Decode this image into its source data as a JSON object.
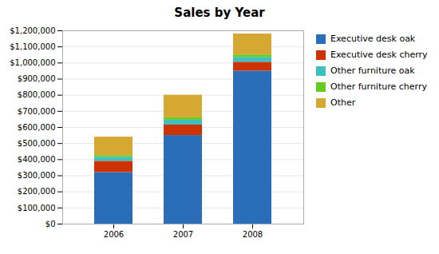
{
  "chart_data": {
    "type": "bar",
    "title": "Sales by Year",
    "categories": [
      "2006",
      "2007",
      "2008"
    ],
    "series": [
      {
        "name": "Executive desk oak",
        "color": "#2a6eba",
        "values": [
          320000,
          550000,
          950000
        ]
      },
      {
        "name": "Executive desk cherry",
        "color": "#cc3300",
        "values": [
          70000,
          65000,
          55000
        ]
      },
      {
        "name": "Other furniture oak",
        "color": "#40bfbf",
        "values": [
          25000,
          30000,
          30000
        ]
      },
      {
        "name": "Other furniture cherry",
        "color": "#66cc22",
        "values": [
          10000,
          15000,
          15000
        ]
      },
      {
        "name": "Other",
        "color": "#d4a832",
        "values": [
          115000,
          140000,
          130000
        ]
      }
    ],
    "stacked": true,
    "ylim": [
      0,
      1200000
    ],
    "yticks": [
      {
        "value": 0,
        "label": "$0"
      },
      {
        "value": 100000,
        "label": "$100,000"
      },
      {
        "value": 200000,
        "label": "$200,000"
      },
      {
        "value": 300000,
        "label": "$300,000"
      },
      {
        "value": 400000,
        "label": "$400,000"
      },
      {
        "value": 500000,
        "label": "$500,000"
      },
      {
        "value": 600000,
        "label": "$600,000"
      },
      {
        "value": 700000,
        "label": "$700,000"
      },
      {
        "value": 800000,
        "label": "$800,000"
      },
      {
        "value": 900000,
        "label": "$900,000"
      },
      {
        "value": 1000000,
        "label": "$1,000,000"
      },
      {
        "value": 1100000,
        "label": "$1,100,000"
      },
      {
        "value": 1200000,
        "label": "$1,200,000"
      }
    ],
    "grid": true,
    "legend": "right"
  }
}
